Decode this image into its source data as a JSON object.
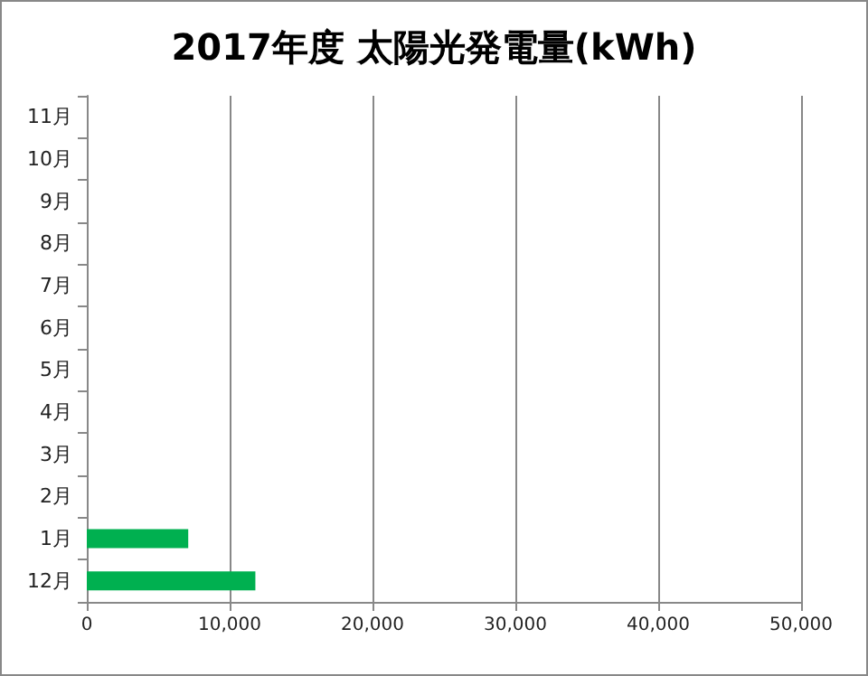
{
  "chart_data": {
    "type": "bar",
    "orientation": "horizontal",
    "title": "2017年度 太陽光発電量(kWh)",
    "categories": [
      "11月",
      "10月",
      "9月",
      "8月",
      "7月",
      "6月",
      "5月",
      "4月",
      "3月",
      "2月",
      "1月",
      "12月"
    ],
    "values": [
      null,
      null,
      null,
      null,
      null,
      null,
      null,
      null,
      null,
      null,
      7100,
      11800
    ],
    "color": "#00b050",
    "xlim": [
      0,
      50000
    ],
    "xticks": [
      {
        "value": 0,
        "label": "0"
      },
      {
        "value": 10000,
        "label": "10,000"
      },
      {
        "value": 20000,
        "label": "20,000"
      },
      {
        "value": 30000,
        "label": "30,000"
      },
      {
        "value": 40000,
        "label": "40,000"
      },
      {
        "value": 50000,
        "label": "50,000"
      }
    ],
    "grid": "x"
  }
}
